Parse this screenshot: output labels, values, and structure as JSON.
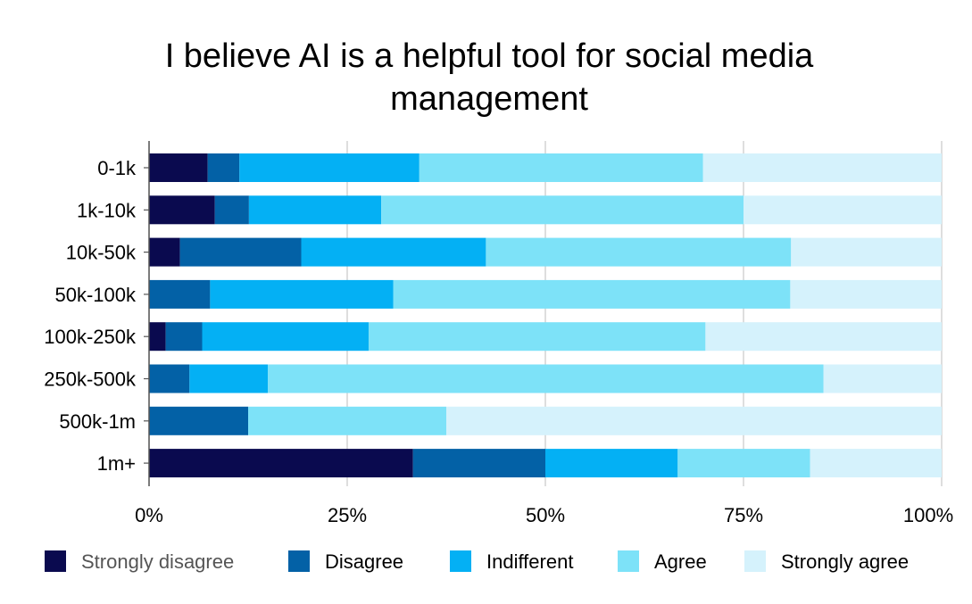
{
  "chart_data": {
    "type": "bar",
    "orientation": "horizontal",
    "stacked": "percent",
    "title": "I believe AI is a helpful tool for social media management",
    "title_lines": [
      "I believe AI is a helpful tool for social media",
      "management"
    ],
    "categories": [
      "0-1k",
      "1k-10k",
      "10k-50k",
      "50k-100k",
      "100k-250k",
      "250k-500k",
      "500k-1m",
      "1m+"
    ],
    "x_ticks": [
      "0%",
      "25%",
      "50%",
      "75%",
      "100%"
    ],
    "xlim": [
      0,
      100
    ],
    "grid": "vertical",
    "legend_position": "bottom",
    "series": [
      {
        "name": "Strongly disagree",
        "color": "#0a0a4f",
        "values": [
          7.4,
          8.3,
          3.9,
          0,
          2.1,
          0,
          0,
          33.3
        ]
      },
      {
        "name": "Disagree",
        "color": "#0361a6",
        "values": [
          4.0,
          4.3,
          15.3,
          7.7,
          4.6,
          5.1,
          12.5,
          16.7
        ]
      },
      {
        "name": "Indifferent",
        "color": "#04b0f4",
        "values": [
          22.7,
          16.7,
          23.3,
          23.1,
          21.0,
          9.9,
          0,
          16.7
        ]
      },
      {
        "name": "Agree",
        "color": "#7de2f8",
        "values": [
          35.8,
          45.7,
          38.5,
          50.1,
          42.5,
          70.1,
          25.0,
          16.7
        ]
      },
      {
        "name": "Strongly agree",
        "color": "#d5f2fc",
        "values": [
          30.1,
          25.0,
          19.0,
          19.1,
          29.8,
          14.9,
          62.5,
          16.6
        ]
      }
    ]
  }
}
